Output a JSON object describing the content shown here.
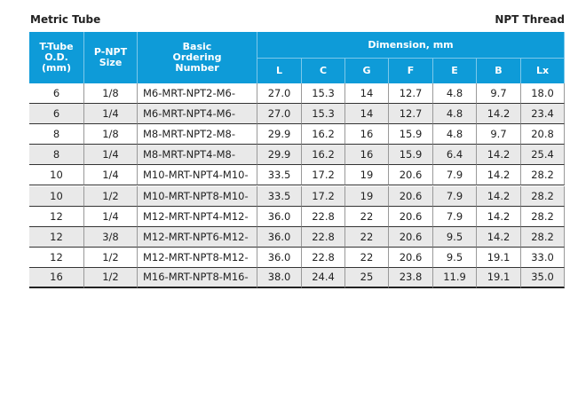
{
  "header": {
    "left": "Metric Tube",
    "right": "NPT Thread"
  },
  "table": {
    "columns": [
      "T-Tube\nO.D.\n(mm)",
      "P-NPT\nSize",
      "Basic\nOrdering\nNumber"
    ],
    "group": "Dimension, mm",
    "dims": [
      "L",
      "C",
      "G",
      "F",
      "E",
      "B",
      "Lx"
    ],
    "rows": [
      [
        "6",
        "1/8",
        "M6-MRT-NPT2-M6-",
        "27.0",
        "15.3",
        "14",
        "12.7",
        "4.8",
        "9.7",
        "18.0"
      ],
      [
        "6",
        "1/4",
        "M6-MRT-NPT4-M6-",
        "27.0",
        "15.3",
        "14",
        "12.7",
        "4.8",
        "14.2",
        "23.4"
      ],
      [
        "8",
        "1/8",
        "M8-MRT-NPT2-M8-",
        "29.9",
        "16.2",
        "16",
        "15.9",
        "4.8",
        "9.7",
        "20.8"
      ],
      [
        "8",
        "1/4",
        "M8-MRT-NPT4-M8-",
        "29.9",
        "16.2",
        "16",
        "15.9",
        "6.4",
        "14.2",
        "25.4"
      ],
      [
        "10",
        "1/4",
        "M10-MRT-NPT4-M10-",
        "33.5",
        "17.2",
        "19",
        "20.6",
        "7.9",
        "14.2",
        "28.2"
      ],
      [
        "10",
        "1/2",
        "M10-MRT-NPT8-M10-",
        "33.5",
        "17.2",
        "19",
        "20.6",
        "7.9",
        "14.2",
        "28.2"
      ],
      [
        "12",
        "1/4",
        "M12-MRT-NPT4-M12-",
        "36.0",
        "22.8",
        "22",
        "20.6",
        "7.9",
        "14.2",
        "28.2"
      ],
      [
        "12",
        "3/8",
        "M12-MRT-NPT6-M12-",
        "36.0",
        "22.8",
        "22",
        "20.6",
        "9.5",
        "14.2",
        "28.2"
      ],
      [
        "12",
        "1/2",
        "M12-MRT-NPT8-M12-",
        "36.0",
        "22.8",
        "22",
        "20.6",
        "9.5",
        "19.1",
        "33.0"
      ],
      [
        "16",
        "1/2",
        "M16-MRT-NPT8-M16-",
        "38.0",
        "24.4",
        "25",
        "23.8",
        "11.9",
        "19.1",
        "35.0"
      ]
    ]
  }
}
